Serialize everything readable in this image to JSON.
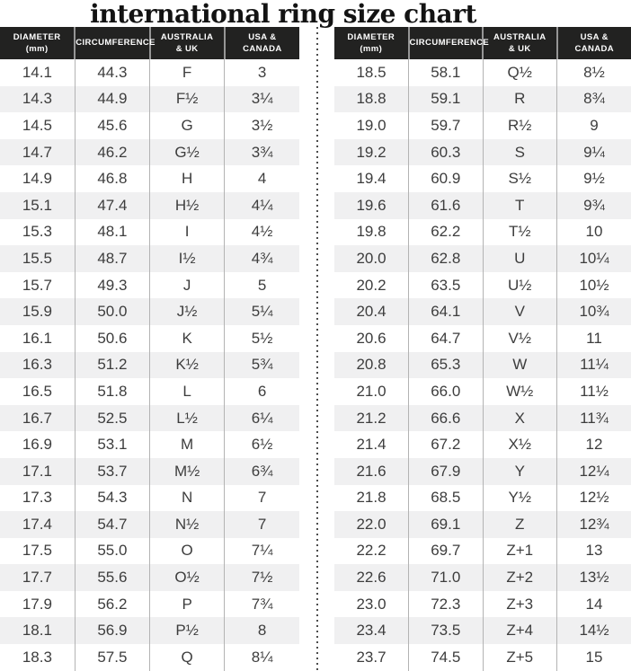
{
  "title": "international ring size chart",
  "headers": [
    "DIAMETER\n(mm)",
    "CIRCUMFERENCE",
    "AUSTRALIA\n& UK",
    "USA &\nCANADA"
  ],
  "colors": {
    "page_bg": "#ffffff",
    "header_bg": "#222221",
    "header_text": "#ffffff",
    "header_rule": "#969696",
    "body_text": "#3d3d3d",
    "row_stripe": "#f0f0f1",
    "column_rule": "#b3b3b3",
    "divider_dot": "#4c4c4c"
  },
  "chart_data": {
    "type": "table",
    "title": "international ring size chart",
    "columns": [
      "DIAMETER (mm)",
      "CIRCUMFERENCE",
      "AUSTRALIA & UK",
      "USA & CANADA"
    ],
    "tables": [
      {
        "rows": [
          [
            "14.1",
            "44.3",
            "F",
            "3"
          ],
          [
            "14.3",
            "44.9",
            "F½",
            "3¼"
          ],
          [
            "14.5",
            "45.6",
            "G",
            "3½"
          ],
          [
            "14.7",
            "46.2",
            "G½",
            "3¾"
          ],
          [
            "14.9",
            "46.8",
            "H",
            "4"
          ],
          [
            "15.1",
            "47.4",
            "H½",
            "4¼"
          ],
          [
            "15.3",
            "48.1",
            "I",
            "4½"
          ],
          [
            "15.5",
            "48.7",
            "I½",
            "4¾"
          ],
          [
            "15.7",
            "49.3",
            "J",
            "5"
          ],
          [
            "15.9",
            "50.0",
            "J½",
            "5¼"
          ],
          [
            "16.1",
            "50.6",
            "K",
            "5½"
          ],
          [
            "16.3",
            "51.2",
            "K½",
            "5¾"
          ],
          [
            "16.5",
            "51.8",
            "L",
            "6"
          ],
          [
            "16.7",
            "52.5",
            "L½",
            "6¼"
          ],
          [
            "16.9",
            "53.1",
            "M",
            "6½"
          ],
          [
            "17.1",
            "53.7",
            "M½",
            "6¾"
          ],
          [
            "17.3",
            "54.3",
            "N",
            "7"
          ],
          [
            "17.4",
            "54.7",
            "N½",
            "7"
          ],
          [
            "17.5",
            "55.0",
            "O",
            "7¼"
          ],
          [
            "17.7",
            "55.6",
            "O½",
            "7½"
          ],
          [
            "17.9",
            "56.2",
            "P",
            "7¾"
          ],
          [
            "18.1",
            "56.9",
            "P½",
            "8"
          ],
          [
            "18.3",
            "57.5",
            "Q",
            "8¼"
          ]
        ]
      },
      {
        "rows": [
          [
            "18.5",
            "58.1",
            "Q½",
            "8½"
          ],
          [
            "18.8",
            "59.1",
            "R",
            "8¾"
          ],
          [
            "19.0",
            "59.7",
            "R½",
            "9"
          ],
          [
            "19.2",
            "60.3",
            "S",
            "9¼"
          ],
          [
            "19.4",
            "60.9",
            "S½",
            "9½"
          ],
          [
            "19.6",
            "61.6",
            "T",
            "9¾"
          ],
          [
            "19.8",
            "62.2",
            "T½",
            "10"
          ],
          [
            "20.0",
            "62.8",
            "U",
            "10¼"
          ],
          [
            "20.2",
            "63.5",
            "U½",
            "10½"
          ],
          [
            "20.4",
            "64.1",
            "V",
            "10¾"
          ],
          [
            "20.6",
            "64.7",
            "V½",
            "11"
          ],
          [
            "20.8",
            "65.3",
            "W",
            "11¼"
          ],
          [
            "21.0",
            "66.0",
            "W½",
            "11½"
          ],
          [
            "21.2",
            "66.6",
            "X",
            "11¾"
          ],
          [
            "21.4",
            "67.2",
            "X½",
            "12"
          ],
          [
            "21.6",
            "67.9",
            "Y",
            "12¼"
          ],
          [
            "21.8",
            "68.5",
            "Y½",
            "12½"
          ],
          [
            "22.0",
            "69.1",
            "Z",
            "12¾"
          ],
          [
            "22.2",
            "69.7",
            "Z+1",
            "13"
          ],
          [
            "22.6",
            "71.0",
            "Z+2",
            "13½"
          ],
          [
            "23.0",
            "72.3",
            "Z+3",
            "14"
          ],
          [
            "23.4",
            "73.5",
            "Z+4",
            "14½"
          ],
          [
            "23.7",
            "74.5",
            "Z+5",
            "15"
          ]
        ]
      }
    ]
  }
}
